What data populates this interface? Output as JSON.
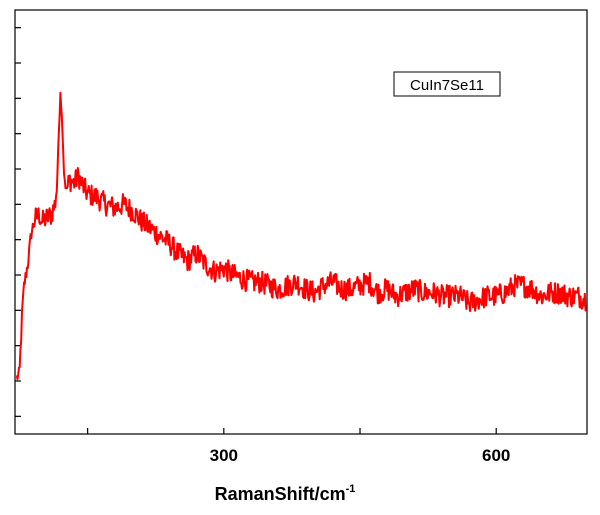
{
  "chart_data": {
    "type": "line",
    "title": "",
    "xlabel": "RamanShift/cm",
    "xlabel_superscript": "-1",
    "ylabel": "",
    "xlim": [
      70,
      700
    ],
    "ylim": [
      -3.5,
      8.5
    ],
    "grid": false,
    "legend_position": "top-right",
    "x_tick_values": [
      150,
      300,
      450,
      600
    ],
    "x_tick_labels": [
      "300",
      "600"
    ],
    "x_tick_labeled_values": [
      300,
      600
    ],
    "y_tick_values": [
      -3,
      -2,
      -1,
      0,
      1,
      2,
      3,
      4,
      5,
      6,
      7,
      8
    ],
    "series": [
      {
        "name": "CuIn7Se11",
        "color": "#ff0000",
        "x": [
          72,
          75,
          78,
          80,
          84,
          88,
          92,
          97,
          100,
          104,
          110,
          114,
          116,
          118,
          120,
          122,
          124,
          126,
          128,
          130,
          135,
          140,
          145,
          150,
          160,
          170,
          180,
          190,
          200,
          210,
          220,
          230,
          240,
          250,
          260,
          270,
          280,
          290,
          300,
          310,
          320,
          330,
          340,
          350,
          360,
          370,
          380,
          390,
          400,
          410,
          420,
          430,
          440,
          450,
          460,
          470,
          480,
          490,
          500,
          510,
          520,
          530,
          540,
          550,
          560,
          570,
          580,
          590,
          600,
          610,
          620,
          630,
          640,
          650,
          660,
          670,
          680,
          690,
          700
        ],
        "y": [
          -1.9,
          -1.8,
          0.0,
          0.7,
          1.3,
          2.2,
          2.6,
          2.7,
          2.5,
          2.6,
          2.7,
          3.0,
          3.4,
          4.8,
          6.2,
          5.3,
          3.9,
          3.4,
          3.5,
          3.7,
          3.6,
          3.8,
          3.5,
          3.3,
          3.2,
          3.0,
          2.9,
          3.0,
          2.8,
          2.5,
          2.3,
          2.1,
          1.9,
          1.6,
          1.4,
          1.6,
          1.3,
          1.1,
          1.2,
          1.0,
          0.9,
          0.8,
          0.8,
          0.7,
          0.6,
          0.7,
          0.8,
          0.6,
          0.5,
          0.7,
          0.8,
          0.6,
          0.6,
          0.7,
          0.8,
          0.5,
          0.6,
          0.4,
          0.5,
          0.6,
          0.5,
          0.5,
          0.4,
          0.4,
          0.4,
          0.2,
          0.3,
          0.4,
          0.4,
          0.5,
          0.7,
          0.7,
          0.6,
          0.4,
          0.5,
          0.5,
          0.4,
          0.4,
          0.3
        ]
      }
    ]
  }
}
